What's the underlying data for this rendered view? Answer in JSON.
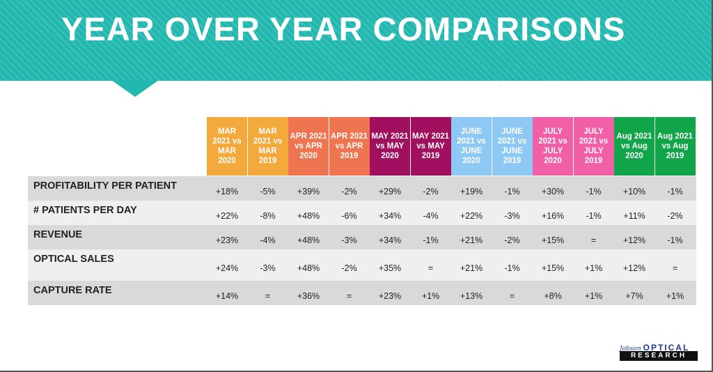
{
  "title": "YEAR OVER YEAR COMPARISONS",
  "columns": [
    {
      "label": "MAR 2021 vs MAR 2020",
      "color": "#f3a93c"
    },
    {
      "label": "MAR 2021 vs MAR 2019",
      "color": "#f3a93c"
    },
    {
      "label": "APR 2021 vs APR 2020",
      "color": "#ef7450"
    },
    {
      "label": "APR 2021 vs APR 2019",
      "color": "#ef7450"
    },
    {
      "label": "MAY 2021 vs MAY 2020",
      "color": "#a0105e"
    },
    {
      "label": "MAY 2021 vs MAY 2019",
      "color": "#a0105e"
    },
    {
      "label": "JUNE 2021 vs JUNE 2020",
      "color": "#8dc9f4"
    },
    {
      "label": "JUNE 2021 vs JUNE 2019",
      "color": "#8dc9f4"
    },
    {
      "label": "JULY 2021 vs JULY 2020",
      "color": "#f15fa6"
    },
    {
      "label": "JULY 2021 vs JULY 2019",
      "color": "#f15fa6"
    },
    {
      "label": "Aug 2021 vs Aug 2020",
      "color": "#11a54a"
    },
    {
      "label": "Aug 2021 vs Aug 2019",
      "color": "#11a54a"
    }
  ],
  "rows": [
    {
      "label": "PROFITABILITY PER PATIENT",
      "values": [
        "+18%",
        "-5%",
        "+39%",
        "-2%",
        "+29%",
        "-2%",
        "+19%",
        "-1%",
        "+30%",
        "-1%",
        "+10%",
        "-1%"
      ]
    },
    {
      "label": "# PATIENTS PER DAY",
      "values": [
        "+22%",
        "-8%",
        "+48%",
        "-6%",
        "+34%",
        "-4%",
        "+22%",
        "-3%",
        "+16%",
        "-1%",
        "+11%",
        "-2%"
      ]
    },
    {
      "label": "REVENUE",
      "values": [
        "+23%",
        "-4%",
        "+48%",
        "-3%",
        "+34%",
        "-1%",
        "+21%",
        "-2%",
        "+15%",
        "=",
        "+12%",
        "-1%"
      ]
    },
    {
      "label": "OPTICAL SALES",
      "values": [
        "+24%",
        "-3%",
        "+48%",
        "-2%",
        "+35%",
        "=",
        "+21%",
        "-1%",
        "+15%",
        "+1%",
        "+12%",
        "="
      ]
    },
    {
      "label": "CAPTURE RATE",
      "values": [
        "+14%",
        "=",
        "+36%",
        "=",
        "+23%",
        "+1%",
        "+13%",
        "=",
        "+8%",
        "+1%",
        "+7%",
        "+1%"
      ]
    }
  ],
  "logo": {
    "brand_small": "Jobson",
    "brand_large": "OPTICAL",
    "brand_bottom": "RESEARCH"
  },
  "colors": {
    "banner": "#22b8b0",
    "row_dark": "#d9d9d9",
    "row_light": "#efefef"
  }
}
